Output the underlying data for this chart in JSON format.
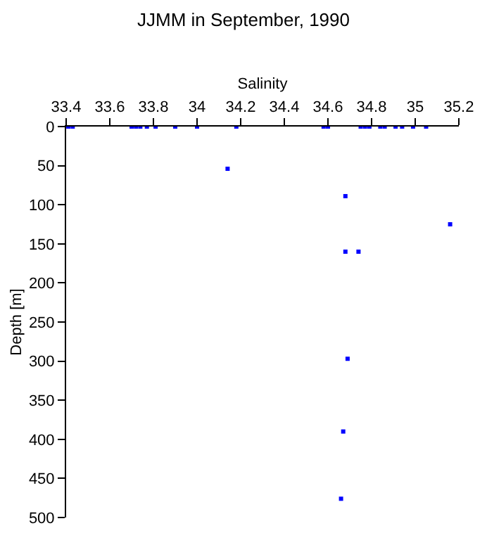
{
  "chart_data": {
    "type": "scatter",
    "title": "JJMM in September, 1990",
    "xlabel": "Salinity",
    "ylabel": "Depth [m]",
    "series": [
      {
        "color": "#0000ff",
        "x": [
          33.41,
          33.43,
          33.7,
          33.72,
          33.74,
          33.77,
          33.81,
          33.9,
          34.0,
          34.18,
          34.58,
          34.6,
          34.75,
          34.77,
          34.79,
          34.84,
          34.86,
          34.91,
          34.94,
          34.99,
          35.05,
          34.14,
          34.68,
          35.16,
          34.68,
          34.74,
          34.69,
          34.67,
          34.66
        ],
        "values": [
          0,
          0,
          0,
          0,
          0,
          0,
          0,
          0,
          0,
          0,
          0,
          0,
          0,
          0,
          0,
          0,
          0,
          0,
          0,
          0,
          0,
          54,
          89,
          125,
          160,
          160,
          297,
          390,
          476
        ]
      }
    ],
    "xlim": [
      33.4,
      35.2
    ],
    "xticks": [
      33.4,
      33.6,
      33.8,
      34,
      34.2,
      34.4,
      34.6,
      34.8,
      35,
      35.2
    ],
    "ylim": [
      500,
      0
    ],
    "yticks": [
      0,
      50,
      100,
      150,
      200,
      250,
      300,
      350,
      400,
      450,
      500
    ],
    "marker": "square"
  }
}
